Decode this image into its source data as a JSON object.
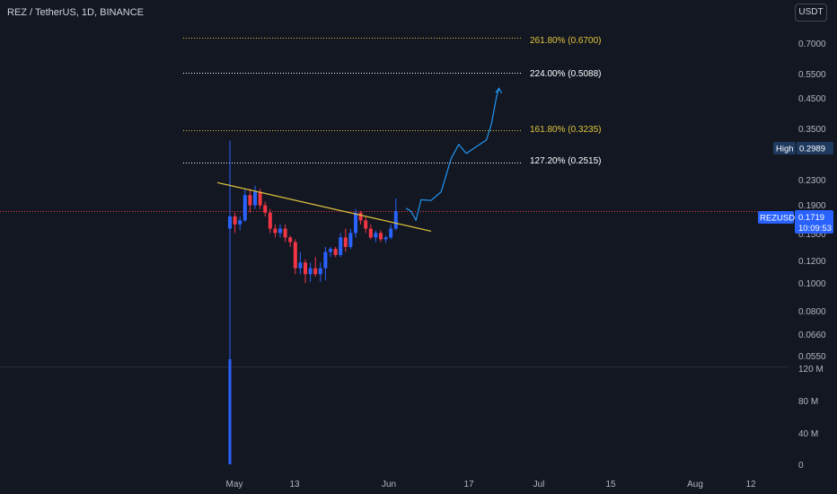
{
  "header": {
    "symbol_line": "REZ / TetherUS, 1D, BINANCE"
  },
  "currency_button": {
    "label": "USDT"
  },
  "price_axis": {
    "ticks": [
      "0.7000",
      "0.5500",
      "0.4500",
      "0.3500",
      "0.2300",
      "0.1900",
      "0.1500",
      "0.1200",
      "0.1000",
      "0.0800",
      "0.0660",
      "0.0550"
    ]
  },
  "volume_axis": {
    "ticks": [
      "120 M",
      "80 M",
      "40 M",
      "0"
    ]
  },
  "time_axis": {
    "ticks": [
      "May",
      "13",
      "Jun",
      "17",
      "Jul",
      "15",
      "Aug",
      "12"
    ]
  },
  "fib_levels": [
    {
      "label": "261.80% (0.6700)",
      "price": 0.67,
      "color": "#e0c53c"
    },
    {
      "label": "224.00% (0.5088)",
      "price": 0.5088,
      "color": "#ffffff"
    },
    {
      "label": "161.80% (0.3235)",
      "price": 0.3235,
      "color": "#e0c53c"
    },
    {
      "label": "127.20% (0.2515)",
      "price": 0.2515,
      "color": "#ffffff"
    }
  ],
  "high_badge": {
    "label": "High",
    "value": "0.2989"
  },
  "last_price_badge": {
    "symbol": "REZUSDT",
    "price": "0.1719",
    "countdown": "10:09:53"
  },
  "colors": {
    "up": "#2962ff",
    "down": "#f23645",
    "trendline": "#e0c53c",
    "projection": "#2196f3",
    "price_line": "#f23645"
  },
  "chart_data": {
    "type": "candlestick",
    "title": "REZ / TetherUS, 1D, BINANCE",
    "scale": "log",
    "ylim": [
      0.051,
      0.78
    ],
    "candles": [
      {
        "o": 0.15,
        "h": 0.2989,
        "l": 0.05,
        "c": 0.165
      },
      {
        "o": 0.165,
        "h": 0.17,
        "l": 0.145,
        "c": 0.155
      },
      {
        "o": 0.155,
        "h": 0.165,
        "l": 0.148,
        "c": 0.16
      },
      {
        "o": 0.16,
        "h": 0.205,
        "l": 0.158,
        "c": 0.195
      },
      {
        "o": 0.195,
        "h": 0.205,
        "l": 0.17,
        "c": 0.18
      },
      {
        "o": 0.18,
        "h": 0.21,
        "l": 0.175,
        "c": 0.2
      },
      {
        "o": 0.2,
        "h": 0.205,
        "l": 0.175,
        "c": 0.18
      },
      {
        "o": 0.18,
        "h": 0.185,
        "l": 0.165,
        "c": 0.17
      },
      {
        "o": 0.17,
        "h": 0.175,
        "l": 0.145,
        "c": 0.15
      },
      {
        "o": 0.15,
        "h": 0.155,
        "l": 0.14,
        "c": 0.145
      },
      {
        "o": 0.145,
        "h": 0.155,
        "l": 0.14,
        "c": 0.15
      },
      {
        "o": 0.15,
        "h": 0.155,
        "l": 0.135,
        "c": 0.14
      },
      {
        "o": 0.14,
        "h": 0.142,
        "l": 0.13,
        "c": 0.135
      },
      {
        "o": 0.135,
        "h": 0.138,
        "l": 0.105,
        "c": 0.11
      },
      {
        "o": 0.11,
        "h": 0.125,
        "l": 0.105,
        "c": 0.115
      },
      {
        "o": 0.115,
        "h": 0.118,
        "l": 0.098,
        "c": 0.105
      },
      {
        "o": 0.105,
        "h": 0.115,
        "l": 0.099,
        "c": 0.11
      },
      {
        "o": 0.11,
        "h": 0.12,
        "l": 0.103,
        "c": 0.105
      },
      {
        "o": 0.105,
        "h": 0.115,
        "l": 0.099,
        "c": 0.11
      },
      {
        "o": 0.11,
        "h": 0.13,
        "l": 0.1,
        "c": 0.125
      },
      {
        "o": 0.125,
        "h": 0.13,
        "l": 0.12,
        "c": 0.128
      },
      {
        "o": 0.128,
        "h": 0.13,
        "l": 0.12,
        "c": 0.122
      },
      {
        "o": 0.122,
        "h": 0.145,
        "l": 0.12,
        "c": 0.14
      },
      {
        "o": 0.14,
        "h": 0.15,
        "l": 0.125,
        "c": 0.13
      },
      {
        "o": 0.13,
        "h": 0.15,
        "l": 0.128,
        "c": 0.145
      },
      {
        "o": 0.145,
        "h": 0.175,
        "l": 0.14,
        "c": 0.17
      },
      {
        "o": 0.17,
        "h": 0.172,
        "l": 0.155,
        "c": 0.16
      },
      {
        "o": 0.16,
        "h": 0.165,
        "l": 0.145,
        "c": 0.15
      },
      {
        "o": 0.15,
        "h": 0.155,
        "l": 0.138,
        "c": 0.14
      },
      {
        "o": 0.14,
        "h": 0.148,
        "l": 0.135,
        "c": 0.145
      },
      {
        "o": 0.145,
        "h": 0.148,
        "l": 0.135,
        "c": 0.138
      },
      {
        "o": 0.138,
        "h": 0.142,
        "l": 0.134,
        "c": 0.14
      },
      {
        "o": 0.14,
        "h": 0.155,
        "l": 0.138,
        "c": 0.15
      },
      {
        "o": 0.15,
        "h": 0.19,
        "l": 0.148,
        "c": 0.1719
      }
    ],
    "volume_spike": {
      "candle_index": 0,
      "value_millions": 130
    },
    "trendline": [
      {
        "candle_index": -2.5,
        "price": 0.215
      },
      {
        "candle_index": 40,
        "price": 0.147
      }
    ],
    "projection_path": [
      {
        "i": 35,
        "p": 0.176
      },
      {
        "i": 36,
        "p": 0.172
      },
      {
        "i": 37,
        "p": 0.16
      },
      {
        "i": 38,
        "p": 0.188
      },
      {
        "i": 40,
        "p": 0.187
      },
      {
        "i": 42,
        "p": 0.2
      },
      {
        "i": 44,
        "p": 0.26
      },
      {
        "i": 45.5,
        "p": 0.29
      },
      {
        "i": 47,
        "p": 0.27
      },
      {
        "i": 49,
        "p": 0.285
      },
      {
        "i": 51,
        "p": 0.3
      },
      {
        "i": 52,
        "p": 0.34
      },
      {
        "i": 53,
        "p": 0.42
      },
      {
        "i": 53.5,
        "p": 0.45
      }
    ]
  }
}
